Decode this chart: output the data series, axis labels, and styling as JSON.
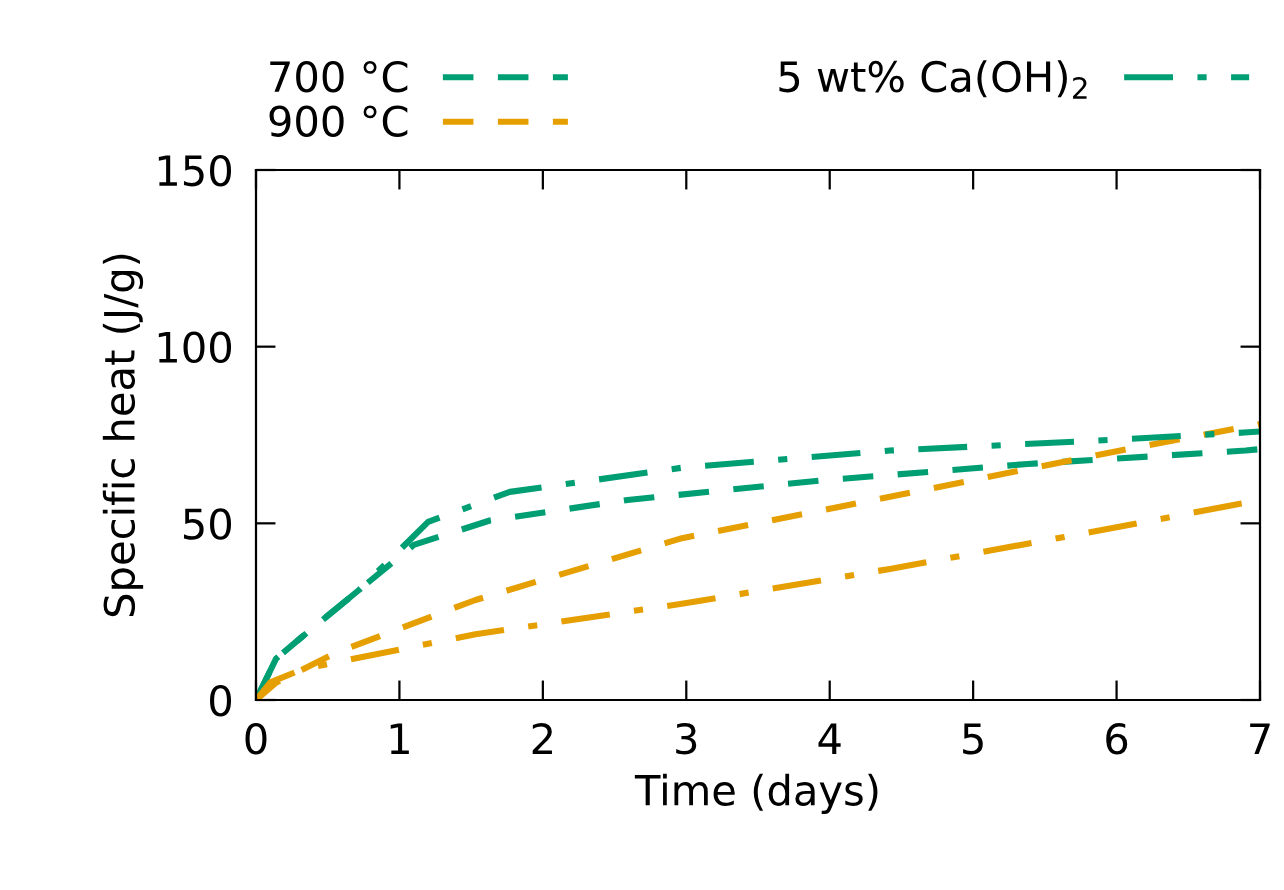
{
  "chart_data": {
    "type": "line",
    "xlabel": "Time (days)",
    "ylabel": "Specific heat (J/g)",
    "xlim": [
      0,
      7
    ],
    "xticks": [
      0,
      1,
      2,
      3,
      4,
      5,
      6,
      7
    ],
    "ylim": [
      0,
      150
    ],
    "yticks": [
      0,
      50,
      100,
      150
    ],
    "grid": false,
    "legend": "top",
    "marker": "none",
    "series": [
      {
        "name": "700 °C",
        "color": "#009e73",
        "line_style": "dashed",
        "x": [
          0,
          0.14,
          0.31,
          0.72,
          1.1,
          1.63,
          2.59,
          3.93,
          5.38,
          6.9,
          7
        ],
        "values": [
          0,
          11.7,
          17.5,
          31.2,
          43.9,
          50.8,
          56.6,
          62.1,
          66.8,
          70.6,
          71
        ]
      },
      {
        "name": "900 °C",
        "color": "#e69f00",
        "line_style": "dashed",
        "x": [
          0,
          0.14,
          0.57,
          1.53,
          2.97,
          4.42,
          5.86,
          7
        ],
        "values": [
          0,
          4.9,
          13.6,
          28.3,
          45.8,
          57.5,
          69.3,
          78.1
        ]
      },
      {
        "name": "5 wt% Ca(OH)$_{2}$",
        "color": "#009e73",
        "line_style": "dashdot",
        "x": [
          0,
          0.14,
          0.31,
          0.72,
          1.2,
          1.77,
          2.98,
          4.42,
          5.86,
          6.89,
          7
        ],
        "values": [
          0,
          11.7,
          17.5,
          31.2,
          50.4,
          58.9,
          65.8,
          70.6,
          73.4,
          75.7,
          76
        ]
      },
      {
        "color": "#e69f00",
        "line_style": "dashdot",
        "x": [
          0,
          0.1,
          0.33,
          1.53,
          2.98,
          4.42,
          5.86,
          6.87,
          7
        ],
        "values": [
          0,
          5,
          8.8,
          18.6,
          27.3,
          37.1,
          47.8,
          55.6,
          56.5
        ]
      }
    ]
  }
}
